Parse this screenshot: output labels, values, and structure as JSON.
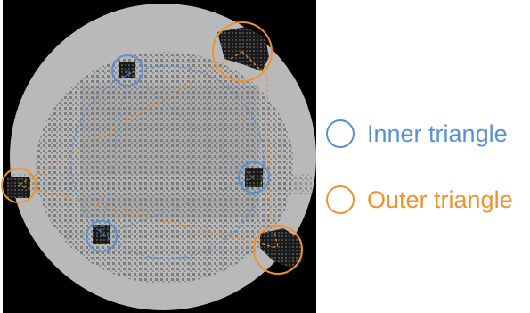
{
  "legend": {
    "inner": {
      "label": "Inner triangle",
      "color": "#5b8fd1"
    },
    "outer": {
      "label": "Outer triangle",
      "color": "#f0922e"
    }
  },
  "colors": {
    "background": "#000000",
    "wafer": "#b9b9b9",
    "die_pattern": "#6e6e6e",
    "defect": "#0d0d0d"
  },
  "figure": {
    "inner_marker_count": 3,
    "outer_marker_count": 3
  }
}
